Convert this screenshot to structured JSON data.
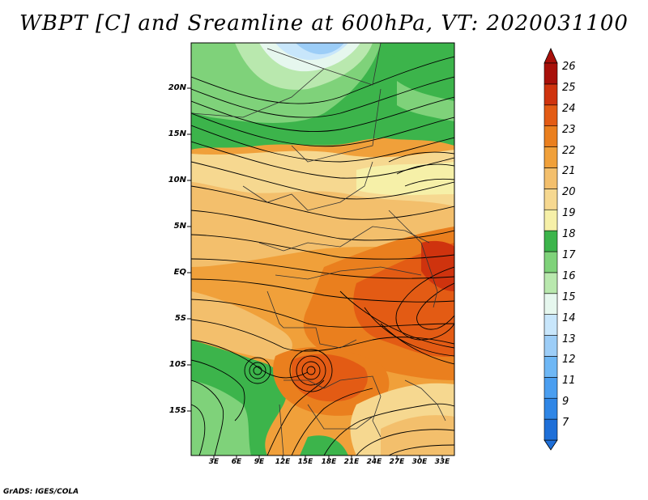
{
  "title": "WBPT [C] and Sreamline at 600hPa, VT: 2020031100",
  "credit": "GrADS: IGES/COLA",
  "lat_labels": [
    "20N",
    "15N",
    "10N",
    "5N",
    "EQ",
    "5S",
    "10S",
    "15S"
  ],
  "lon_labels": [
    "3E",
    "6E",
    "9E",
    "12E",
    "15E",
    "18E",
    "21E",
    "24E",
    "27E",
    "30E",
    "33E"
  ],
  "colorbar": {
    "labels": [
      "7",
      "9",
      "11",
      "12",
      "13",
      "14",
      "15",
      "16",
      "17",
      "18",
      "19",
      "20",
      "21",
      "22",
      "23",
      "24",
      "25",
      "26"
    ],
    "colors": [
      "#1e6fd8",
      "#2f86e6",
      "#4a9ef0",
      "#6eb7f5",
      "#9ccdf7",
      "#c8e6fb",
      "#e6f7ee",
      "#b9e8ae",
      "#7fd27a",
      "#3cb44b",
      "#f6f0a8",
      "#f6d890",
      "#f3bf6c",
      "#f0a03a",
      "#ea7f1e",
      "#e35b14",
      "#cf330e",
      "#a8100a"
    ]
  }
}
